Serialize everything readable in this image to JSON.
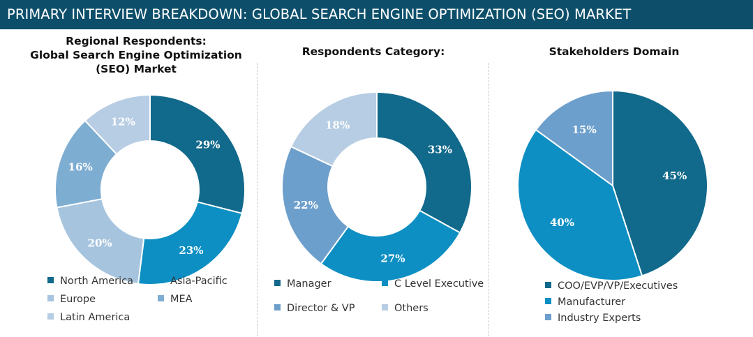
{
  "banner": {
    "title": "PRIMARY INTERVIEW BREAKDOWN: GLOBAL SEARCH ENGINE OPTIMIZATION (SEO) MARKET"
  },
  "colors": {
    "banner_bg": "#0d4f6b",
    "dark_teal": "#11698b",
    "bright_blue": "#0e8fc3",
    "light_blue": "#a6c4de",
    "mid_blue": "#7eadd2",
    "pale_blue": "#b7cde3",
    "steel_blue": "#6d9fcc"
  },
  "chart_data": [
    {
      "type": "pie",
      "title": "Regional Respondents: Global Search Engine Optimization (SEO) Market",
      "title_lines": [
        "Regional Respondents:",
        "Global Search Engine Optimization",
        "(SEO) Market"
      ],
      "series": [
        {
          "name": "North America",
          "value": 29,
          "label": "29%",
          "color": "#11698b"
        },
        {
          "name": "Asia-Pacific",
          "value": 23,
          "label": "23%",
          "color": "#0e8fc3"
        },
        {
          "name": "Europe",
          "value": 20,
          "label": "20%",
          "color": "#a6c4de"
        },
        {
          "name": "MEA",
          "value": 16,
          "label": "16%",
          "color": "#7eadd2"
        },
        {
          "name": "Latin America",
          "value": 12,
          "label": "12%",
          "color": "#b7cde3"
        }
      ]
    },
    {
      "type": "pie",
      "title": "Respondents Category:",
      "title_lines": [
        "Respondents Category:"
      ],
      "series": [
        {
          "name": "Manager",
          "value": 33,
          "label": "33%",
          "color": "#11698b"
        },
        {
          "name": "C Level Executive",
          "value": 27,
          "label": "27%",
          "color": "#0e8fc3"
        },
        {
          "name": "Director & VP",
          "value": 22,
          "label": "22%",
          "color": "#6d9fcc"
        },
        {
          "name": "Others",
          "value": 18,
          "label": "18%",
          "color": "#b7cde3"
        }
      ]
    },
    {
      "type": "pie",
      "title": "Stakeholders Domain",
      "title_lines": [
        "Stakeholders Domain"
      ],
      "series": [
        {
          "name": "COO/EVP/VP/Executives",
          "value": 45,
          "label": "45%",
          "color": "#11698b"
        },
        {
          "name": "Manufacturer",
          "value": 40,
          "label": "40%",
          "color": "#0e8fc3"
        },
        {
          "name": "Industry Experts",
          "value": 15,
          "label": "15%",
          "color": "#6d9fcc"
        }
      ]
    }
  ]
}
